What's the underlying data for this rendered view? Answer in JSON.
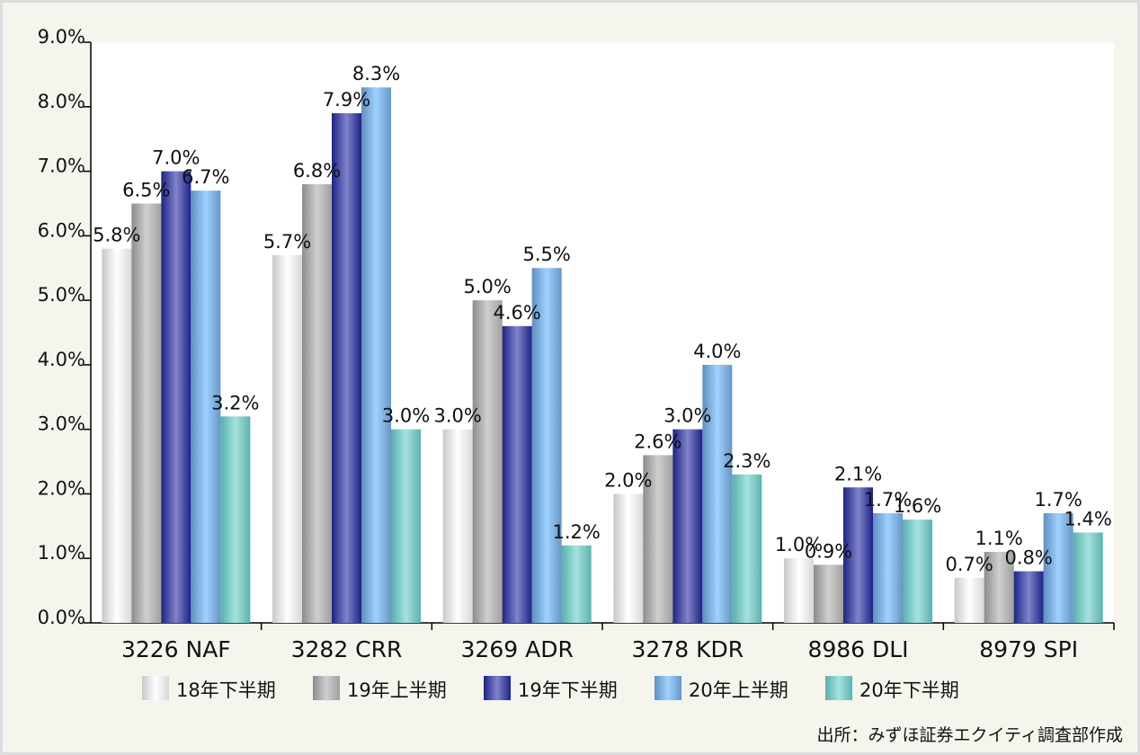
{
  "chart_data": {
    "type": "bar",
    "title": "",
    "xlabel": "",
    "ylabel": "",
    "ylim": [
      0,
      9
    ],
    "yticks": [
      "0.0%",
      "1.0%",
      "2.0%",
      "3.0%",
      "4.0%",
      "5.0%",
      "6.0%",
      "7.0%",
      "8.0%",
      "9.0%"
    ],
    "categories": [
      "3226 NAF",
      "3282 CRR",
      "3269 ADR",
      "3278 KDR",
      "8986 DLI",
      "8979 SPI"
    ],
    "series": [
      {
        "name": "18年下半期",
        "values": [
          5.8,
          5.7,
          3.0,
          2.0,
          1.0,
          0.7
        ],
        "colors": [
          "#c8c8c8",
          "#ffffff",
          "#d8d8d8"
        ]
      },
      {
        "name": "19年上半期",
        "values": [
          6.5,
          6.8,
          5.0,
          2.6,
          0.9,
          1.1
        ],
        "colors": [
          "#8c8c8c",
          "#cfcfcf",
          "#a0a0a0"
        ]
      },
      {
        "name": "19年下半期",
        "values": [
          7.0,
          7.9,
          4.6,
          3.0,
          2.1,
          0.8
        ],
        "colors": [
          "#1c2388",
          "#8084c8",
          "#1c2388"
        ]
      },
      {
        "name": "20年上半期",
        "values": [
          6.7,
          8.3,
          5.5,
          4.0,
          1.7,
          1.7
        ],
        "colors": [
          "#5e8fc0",
          "#9fd2ff",
          "#6896c4"
        ]
      },
      {
        "name": "20年下半期",
        "values": [
          3.2,
          3.0,
          1.2,
          2.3,
          1.6,
          1.4
        ],
        "colors": [
          "#56b0ac",
          "#a6e2de",
          "#5eb2ae"
        ]
      }
    ],
    "grid": false,
    "legend_position": "bottom"
  },
  "source": "出所：みずほ証券エクイティ調査部作成"
}
